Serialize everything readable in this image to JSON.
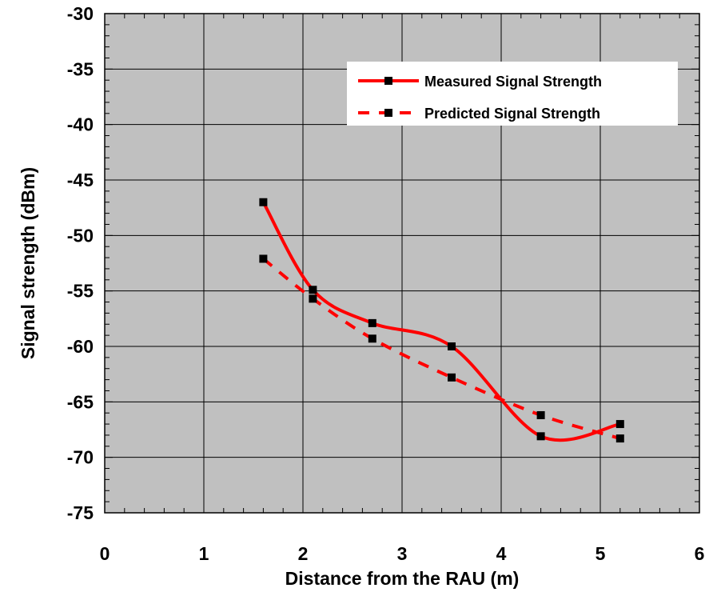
{
  "chart_data": {
    "type": "line",
    "title": "",
    "xlabel": "Distance from the RAU (m)",
    "ylabel": "Signal strength (dBm)",
    "xlim": [
      0,
      6
    ],
    "ylim": [
      -75,
      -30
    ],
    "x_ticks": [
      0,
      1,
      2,
      3,
      4,
      5,
      6
    ],
    "y_ticks": [
      -30,
      -35,
      -40,
      -45,
      -50,
      -55,
      -60,
      -65,
      -70,
      -75
    ],
    "x_tick_labels": [
      "0",
      "1",
      "2",
      "3",
      "4",
      "5",
      "6"
    ],
    "y_tick_labels": [
      "-30",
      "-35",
      "-40",
      "-45",
      "-50",
      "-55",
      "-60",
      "-65",
      "-70",
      "-75"
    ],
    "grid": true,
    "legend_position": "top-right",
    "plot_background": "#c0c0c0",
    "series": [
      {
        "name": "Measured Signal Strength",
        "color": "#ff0000",
        "line_style": "solid",
        "marker": "square",
        "marker_color": "#000000",
        "points": [
          {
            "x": 1.6,
            "y": -47.0
          },
          {
            "x": 2.1,
            "y": -54.9
          },
          {
            "x": 2.7,
            "y": -57.9
          },
          {
            "x": 3.5,
            "y": -60.0
          },
          {
            "x": 4.4,
            "y": -68.1
          },
          {
            "x": 5.2,
            "y": -67.0
          }
        ]
      },
      {
        "name": "Predicted Signal Strength",
        "color": "#ff0000",
        "line_style": "dashed",
        "marker": "square",
        "marker_color": "#000000",
        "points": [
          {
            "x": 1.6,
            "y": -52.1
          },
          {
            "x": 2.1,
            "y": -55.7
          },
          {
            "x": 2.7,
            "y": -59.3
          },
          {
            "x": 3.5,
            "y": -62.8
          },
          {
            "x": 4.4,
            "y": -66.2
          },
          {
            "x": 5.2,
            "y": -68.3
          }
        ]
      }
    ]
  }
}
